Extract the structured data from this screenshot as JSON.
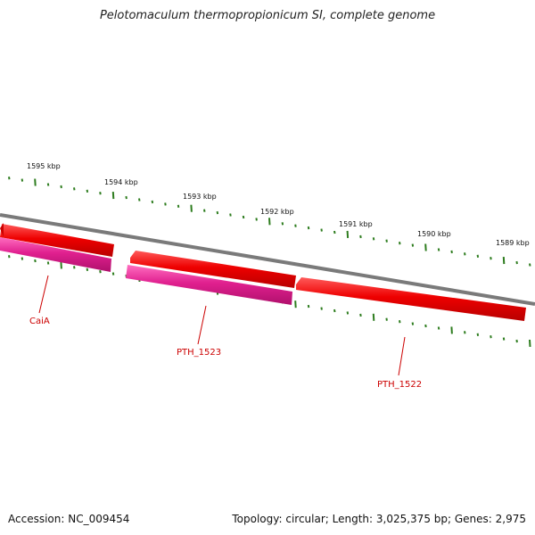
{
  "title": "Pelotomaculum thermopropionicum SI, complete genome",
  "footer": {
    "accession": "Accession: NC_009454",
    "summary": "Topology: circular; Length: 3,025,375 bp; Genes: 2,975"
  },
  "colors": {
    "backbone": "#7a7a7a",
    "gene_forward": "#ee0000",
    "gene_reverse": "#e0208f",
    "tick": "#2e7d1f",
    "label": "#cc0000"
  },
  "ticks": {
    "labels": [
      "1595 kbp",
      "1594 kbp",
      "1593 kbp",
      "1592 kbp",
      "1591 kbp",
      "1590 kbp",
      "1589 kbp"
    ]
  },
  "genes": [
    {
      "name": "CaiA",
      "label": "CaiA",
      "strand": "reverse"
    },
    {
      "name": "PTH_1523",
      "label": "PTH_1523",
      "strand": "reverse"
    },
    {
      "name": "PTH_1522",
      "label": "PTH_1522",
      "strand": "forward"
    }
  ]
}
